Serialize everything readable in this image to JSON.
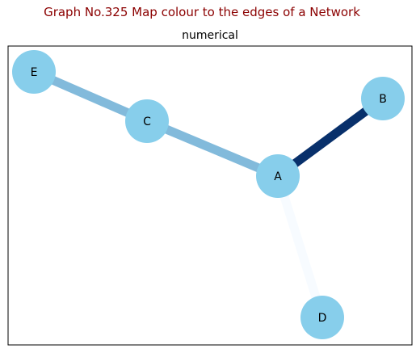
{
  "figure": {
    "suptitle": "Graph No.325 Map colour to the edges of a Network",
    "title": "numerical"
  },
  "network": {
    "node_color": "#87ceeb",
    "nodes": [
      {
        "id": "A",
        "label": "A"
      },
      {
        "id": "B",
        "label": "B"
      },
      {
        "id": "C",
        "label": "C"
      },
      {
        "id": "D",
        "label": "D"
      },
      {
        "id": "E",
        "label": "E"
      }
    ],
    "edges": [
      {
        "from": "A",
        "to": "B",
        "value": 1.0,
        "color": "#08306b"
      },
      {
        "from": "A",
        "to": "C",
        "value": 0.45,
        "color": "#82badb"
      },
      {
        "from": "A",
        "to": "D",
        "value": 0.0,
        "color": "#f7fbff"
      },
      {
        "from": "C",
        "to": "E",
        "value": 0.45,
        "color": "#82badb"
      }
    ],
    "colormap": "Blues"
  }
}
